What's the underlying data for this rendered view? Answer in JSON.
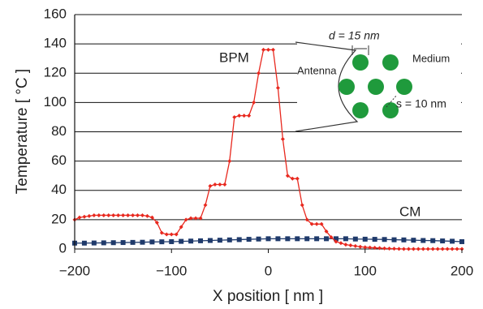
{
  "chart_data": {
    "type": "line",
    "x_label": "X position [ nm ]",
    "y_label": "Temperature [ °C ]",
    "xlim": [
      -200,
      200
    ],
    "ylim": [
      0,
      160
    ],
    "xticks": [
      {
        "value": -200,
        "label": "−200"
      },
      {
        "value": -100,
        "label": "−100"
      },
      0,
      100,
      200
    ],
    "yticks": [
      0,
      20,
      40,
      60,
      80,
      100,
      120,
      140,
      160
    ],
    "grid": true,
    "annotations": {
      "bpm": "BPM",
      "cm": "CM",
      "antenna": "Antenna",
      "medium": "Medium",
      "d": "d = 15 nm",
      "s": "s = 10 nm"
    },
    "series": [
      {
        "name": "BPM",
        "color": "#e8281e",
        "marker": "diamond",
        "x": [
          -200,
          -195,
          -190,
          -185,
          -180,
          -175,
          -170,
          -165,
          -160,
          -155,
          -150,
          -145,
          -140,
          -135,
          -130,
          -125,
          -120,
          -115,
          -110,
          -105,
          -100,
          -95,
          -90,
          -85,
          -80,
          -75,
          -70,
          -65,
          -60,
          -55,
          -50,
          -45,
          -40,
          -35,
          -30,
          -25,
          -20,
          -15,
          -10,
          -5,
          0,
          5,
          10,
          15,
          20,
          25,
          30,
          35,
          40,
          45,
          50,
          55,
          60,
          65,
          70,
          75,
          80,
          85,
          90,
          95,
          100,
          105,
          110,
          115,
          120,
          125,
          130,
          135,
          140,
          145,
          150,
          155,
          160,
          165,
          170,
          175,
          180,
          185,
          190,
          195,
          200
        ],
        "values": [
          20,
          21.5,
          22,
          22.5,
          23,
          23,
          23,
          23,
          23,
          23,
          23,
          23,
          23,
          23,
          23,
          22.5,
          21.5,
          18,
          11,
          10,
          10,
          10,
          15,
          20,
          21,
          21,
          21,
          30,
          43,
          44,
          44,
          44,
          60,
          90,
          91,
          91,
          91,
          100,
          120,
          136,
          136,
          136,
          110,
          75,
          50,
          48,
          48,
          30,
          20,
          17,
          17,
          17,
          12,
          8,
          5,
          4,
          3,
          2.5,
          2,
          1.5,
          1.2,
          1,
          0.8,
          0.6,
          0.4,
          0.3,
          0.2,
          0.1,
          0,
          0,
          0,
          0,
          0,
          0,
          0,
          0,
          0,
          0,
          0,
          0,
          0
        ]
      },
      {
        "name": "CM",
        "color": "#1f3a6b",
        "marker": "square",
        "x": [
          -200,
          -190,
          -180,
          -170,
          -160,
          -150,
          -140,
          -130,
          -120,
          -110,
          -100,
          -90,
          -80,
          -70,
          -60,
          -50,
          -40,
          -30,
          -20,
          -10,
          0,
          10,
          20,
          30,
          40,
          50,
          60,
          70,
          80,
          90,
          100,
          110,
          120,
          130,
          140,
          150,
          160,
          170,
          180,
          190,
          200
        ],
        "values": [
          4,
          4,
          4.1,
          4.2,
          4.3,
          4.4,
          4.5,
          4.6,
          4.8,
          4.9,
          5,
          5.2,
          5.4,
          5.6,
          5.8,
          6,
          6.2,
          6.4,
          6.6,
          6.8,
          7,
          7,
          7,
          7,
          7,
          7,
          7,
          7,
          7,
          6.8,
          6.7,
          6.6,
          6.5,
          6.3,
          6.2,
          6,
          5.8,
          5.7,
          5.5,
          5.3,
          5
        ]
      }
    ]
  }
}
